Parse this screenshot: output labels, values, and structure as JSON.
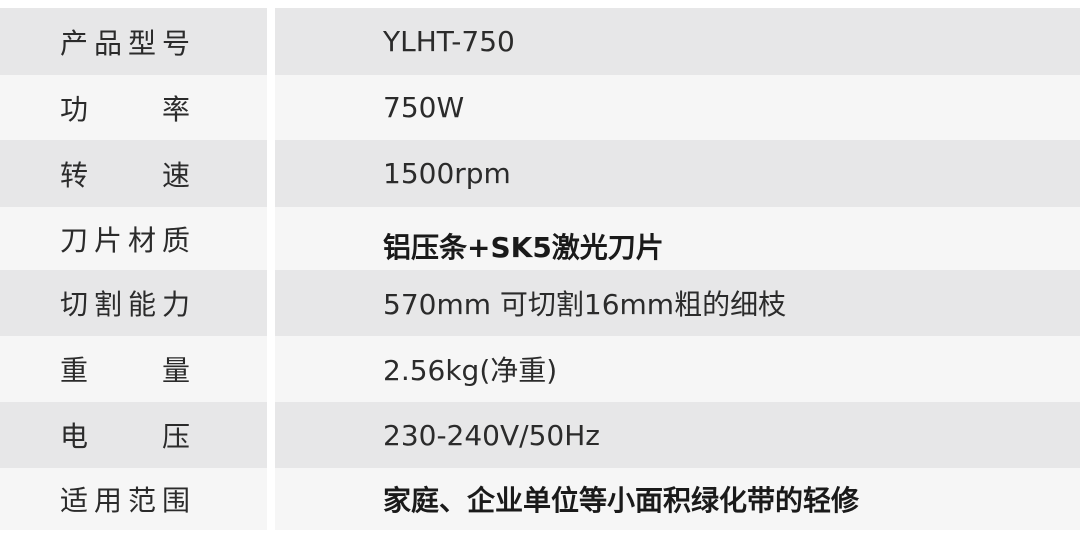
{
  "specs": [
    {
      "label": "产品型号",
      "value": "YLHT-750",
      "bold": false
    },
    {
      "label": "功 率",
      "value": "750W",
      "bold": false
    },
    {
      "label": "转 速",
      "value": "1500rpm",
      "bold": false
    },
    {
      "label": "刀片材质",
      "value": "铝压条+SK5激光刀片",
      "bold": true
    },
    {
      "label": "切割能力",
      "value": "570mm 可切割16mm粗的细枝",
      "bold": false
    },
    {
      "label": "重 量",
      "value": "2.56kg(净重)",
      "bold": false
    },
    {
      "label": "电 压",
      "value": "230-240V/50Hz",
      "bold": false
    },
    {
      "label": "适用范围",
      "value": "家庭、企业单位等小面积绿化带的轻修",
      "bold": true
    }
  ]
}
